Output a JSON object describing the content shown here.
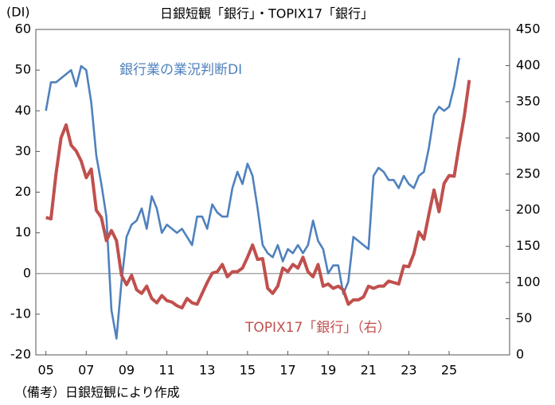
{
  "chart_data": {
    "type": "line",
    "title": "日銀短観「銀行」・TOPIX17「銀行」",
    "y_axis_label": "(DI)",
    "note": "（備考）日銀短観により作成",
    "x": [
      2005,
      2005.25,
      2005.5,
      2005.75,
      2006,
      2006.25,
      2006.5,
      2006.75,
      2007,
      2007.25,
      2007.5,
      2007.75,
      2008,
      2008.25,
      2008.5,
      2008.75,
      2009,
      2009.25,
      2009.5,
      2009.75,
      2010,
      2010.25,
      2010.5,
      2010.75,
      2011,
      2011.25,
      2011.5,
      2011.75,
      2012,
      2012.25,
      2012.5,
      2012.75,
      2013,
      2013.25,
      2013.5,
      2013.75,
      2014,
      2014.25,
      2014.5,
      2014.75,
      2015,
      2015.25,
      2015.5,
      2015.75,
      2016,
      2016.25,
      2016.5,
      2016.75,
      2017,
      2017.25,
      2017.5,
      2017.75,
      2018,
      2018.25,
      2018.5,
      2018.75,
      2019,
      2019.25,
      2019.5,
      2019.75,
      2020,
      2020.25,
      2020.5,
      2020.75,
      2021,
      2021.25,
      2021.5,
      2021.75,
      2022,
      2022.25,
      2022.5,
      2022.75,
      2023,
      2023.25,
      2023.5,
      2023.75,
      2024,
      2024.25,
      2024.5,
      2024.75,
      2025,
      2025.25,
      2025.5,
      2025.75,
      2026
    ],
    "series": [
      {
        "name": "銀行業の業況判断DI",
        "color": "#4f81bd",
        "axis": "y",
        "values": [
          40,
          47,
          47,
          48,
          49,
          50,
          46,
          51,
          50,
          42,
          29,
          22,
          14,
          -9,
          -16,
          -2,
          9,
          12,
          13,
          16,
          11,
          19,
          16,
          10,
          12,
          11,
          10,
          11,
          9,
          7,
          14,
          14,
          11,
          17,
          15,
          14,
          14,
          21,
          25,
          22,
          27,
          24,
          16,
          7,
          5,
          4,
          7,
          3,
          6,
          5,
          7,
          5,
          7,
          13,
          8,
          6,
          0,
          2,
          2,
          -5,
          -2,
          9,
          8,
          7,
          6,
          24,
          26,
          25,
          23,
          23,
          21,
          24,
          22,
          21,
          24,
          25,
          31,
          39,
          41,
          40,
          41,
          46,
          53,
          null,
          null
        ]
      },
      {
        "name": "TOPIX17「銀行」（右）",
        "color": "#c0504d",
        "axis": "y2",
        "values": [
          190,
          188,
          250,
          300,
          318,
          290,
          282,
          268,
          245,
          257,
          200,
          190,
          158,
          172,
          158,
          110,
          97,
          110,
          90,
          85,
          95,
          78,
          72,
          82,
          75,
          73,
          68,
          65,
          78,
          72,
          70,
          85,
          100,
          113,
          115,
          125,
          108,
          115,
          115,
          120,
          135,
          152,
          132,
          133,
          92,
          85,
          95,
          120,
          115,
          125,
          120,
          135,
          115,
          108,
          125,
          95,
          98,
          92,
          95,
          90,
          70,
          76,
          76,
          80,
          95,
          92,
          95,
          95,
          102,
          100,
          98,
          123,
          122,
          140,
          170,
          160,
          195,
          228,
          198,
          237,
          248,
          247,
          290,
          330,
          380
        ]
      }
    ],
    "xlim": [
      2004.5,
      2028
    ],
    "xticks": [
      {
        "value": 2005,
        "label": "05"
      },
      {
        "value": 2007,
        "label": "07"
      },
      {
        "value": 2009,
        "label": "09"
      },
      {
        "value": 2011,
        "label": "11"
      },
      {
        "value": 2013,
        "label": "13"
      },
      {
        "value": 2015,
        "label": "15"
      },
      {
        "value": 2017,
        "label": "17"
      },
      {
        "value": 2019,
        "label": "19"
      },
      {
        "value": 2021,
        "label": "21"
      },
      {
        "value": 2023,
        "label": "23"
      },
      {
        "value": 2025,
        "label": "25"
      }
    ],
    "ylim": [
      -20,
      60
    ],
    "yticks": [
      -20,
      -10,
      0,
      10,
      20,
      30,
      40,
      50,
      60
    ],
    "y2lim": [
      0,
      450
    ],
    "y2ticks": [
      0,
      50,
      100,
      150,
      200,
      250,
      300,
      350,
      400,
      450
    ],
    "zero_line": true
  }
}
